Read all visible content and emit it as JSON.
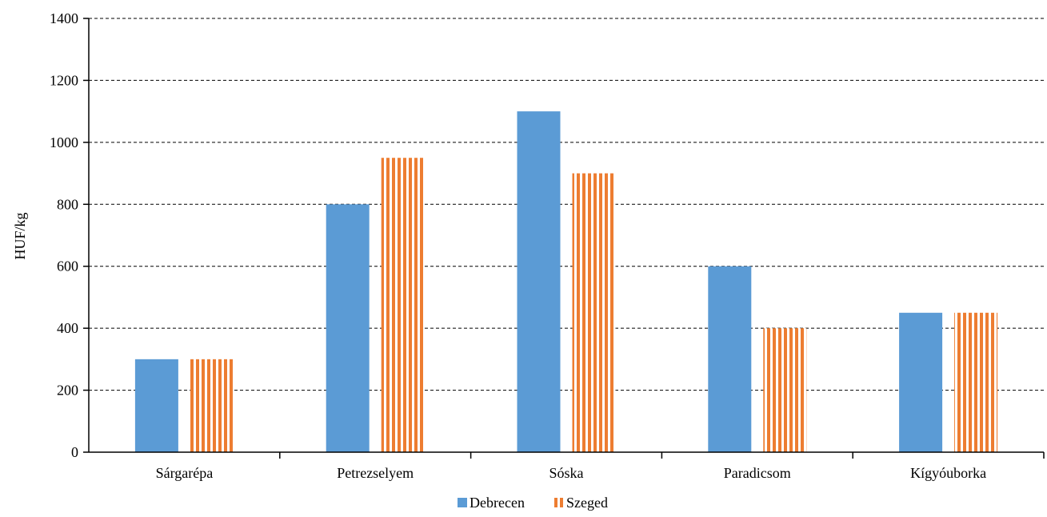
{
  "chart_data": {
    "type": "bar",
    "title": "",
    "xlabel": "",
    "ylabel": "HUF/kg",
    "ylim": [
      0,
      1400
    ],
    "yticks": [
      0,
      200,
      400,
      600,
      800,
      1000,
      1200,
      1400
    ],
    "grid": true,
    "legend_position": "bottom",
    "categories": [
      "Sárgarépa",
      "Petrezselyem",
      "Sóska",
      "Paradicsom",
      "Kígyóuborka"
    ],
    "series": [
      {
        "name": "Debrecen",
        "values": [
          300,
          800,
          1100,
          600,
          450
        ],
        "color": "#5B9BD5",
        "pattern": "solid"
      },
      {
        "name": "Szeged",
        "values": [
          300,
          950,
          900,
          400,
          450
        ],
        "color": "#ED7D31",
        "pattern": "vertical-stripes"
      }
    ]
  }
}
